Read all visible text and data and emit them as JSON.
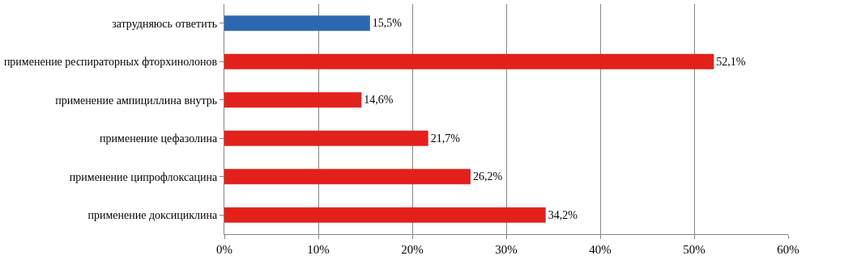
{
  "chart_data": {
    "type": "bar",
    "orientation": "horizontal",
    "categories": [
      "затрудняюсь ответить",
      "применение респираторных фторхинолонов",
      "применение ампициллина внутрь",
      "применение цефазолина",
      "применение ципрофлоксацина",
      "применение доксициклина"
    ],
    "values": [
      15.5,
      52.1,
      14.6,
      21.7,
      26.2,
      34.2
    ],
    "value_labels": [
      "15,5%",
      "52,1%",
      "14,6%",
      "21,7%",
      "26,2%",
      "34,2%"
    ],
    "colors": [
      "#2e67b1",
      "#e3211b",
      "#e3211b",
      "#e3211b",
      "#e3211b",
      "#e3211b"
    ],
    "xlim": [
      0,
      60
    ],
    "xticks": [
      {
        "value": 0,
        "label": "0%"
      },
      {
        "value": 10,
        "label": "10%"
      },
      {
        "value": 20,
        "label": "20%"
      },
      {
        "value": 30,
        "label": "30%"
      },
      {
        "value": 40,
        "label": "40%"
      },
      {
        "value": 50,
        "label": "50%"
      },
      {
        "value": 60,
        "label": "60%"
      }
    ],
    "grid": "x"
  }
}
